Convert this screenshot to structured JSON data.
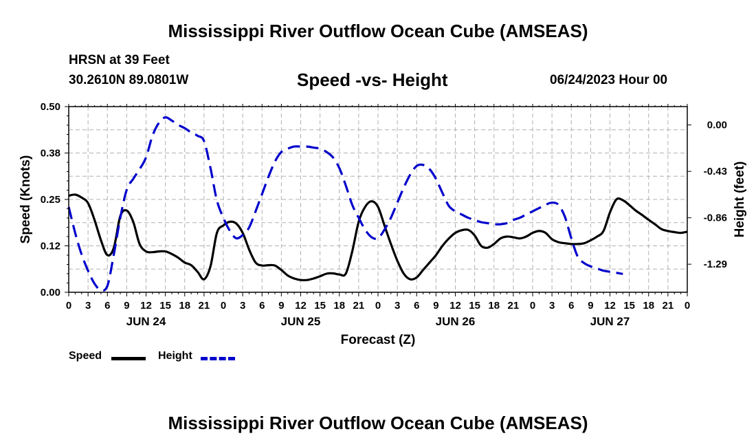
{
  "header": {
    "title": "Mississippi River Outflow Ocean Cube (AMSEAS)",
    "station": "HRSN at 39 Feet",
    "coords": "30.2610N  89.0801W",
    "plot_title": "Speed -vs- Height",
    "datetime": "06/24/2023 Hour 00"
  },
  "footer": {
    "title": "Mississippi River Outflow Ocean Cube (AMSEAS)"
  },
  "legend": {
    "speed_label": "Speed",
    "height_label": "Height"
  },
  "colors": {
    "speed": "#000000",
    "height": "#0000cc",
    "grid": "#b0b0b0"
  },
  "chart_data": {
    "type": "line",
    "xlabel": "Forecast (Z)",
    "ylabel": "Speed (Knots)",
    "y2label": "Height (feet)",
    "x_unit": "hours since 06/24/2023 00Z",
    "xlim": [
      0,
      96
    ],
    "ylim": [
      0,
      0.5
    ],
    "y2lim": [
      -1.55,
      0.17
    ],
    "x_tick_labels": [
      "0",
      "3",
      "6",
      "9",
      "12",
      "15",
      "18",
      "21",
      "0",
      "3",
      "6",
      "9",
      "12",
      "15",
      "18",
      "21",
      "0",
      "3",
      "6",
      "9",
      "12",
      "15",
      "18",
      "21",
      "0",
      "3",
      "6",
      "9",
      "12",
      "15",
      "18",
      "21",
      "0"
    ],
    "y_ticks": [
      {
        "value": 0.0,
        "label": "0.00"
      },
      {
        "value": 0.125,
        "label": "0.12"
      },
      {
        "value": 0.25,
        "label": "0.25"
      },
      {
        "value": 0.375,
        "label": "0.38"
      },
      {
        "value": 0.5,
        "label": "0.50"
      }
    ],
    "y2_ticks": [
      {
        "value": 0.0,
        "label": "0.00"
      },
      {
        "value": -0.43,
        "label": "-0.43"
      },
      {
        "value": -0.86,
        "label": "-0.86"
      },
      {
        "value": -1.29,
        "label": "-1.29"
      }
    ],
    "day_labels": [
      {
        "hour": 12,
        "label": "JUN 24"
      },
      {
        "hour": 36,
        "label": "JUN 25"
      },
      {
        "hour": 60,
        "label": "JUN 26"
      },
      {
        "hour": 84,
        "label": "JUN 27"
      }
    ],
    "series": [
      {
        "name": "Speed",
        "axis": "left",
        "style": "solid",
        "points": [
          [
            0,
            0.26
          ],
          [
            1,
            0.263
          ],
          [
            2,
            0.255
          ],
          [
            3,
            0.24
          ],
          [
            4,
            0.195
          ],
          [
            5,
            0.14
          ],
          [
            6,
            0.1
          ],
          [
            7,
            0.12
          ],
          [
            8,
            0.205
          ],
          [
            9,
            0.22
          ],
          [
            10,
            0.19
          ],
          [
            11,
            0.13
          ],
          [
            12,
            0.11
          ],
          [
            13,
            0.108
          ],
          [
            14,
            0.11
          ],
          [
            15,
            0.11
          ],
          [
            16,
            0.103
          ],
          [
            17,
            0.093
          ],
          [
            18,
            0.08
          ],
          [
            19,
            0.073
          ],
          [
            20,
            0.055
          ],
          [
            21,
            0.035
          ],
          [
            22,
            0.07
          ],
          [
            23,
            0.16
          ],
          [
            24,
            0.18
          ],
          [
            25,
            0.19
          ],
          [
            26,
            0.185
          ],
          [
            27,
            0.16
          ],
          [
            28,
            0.115
          ],
          [
            29,
            0.08
          ],
          [
            30,
            0.072
          ],
          [
            31,
            0.073
          ],
          [
            32,
            0.072
          ],
          [
            33,
            0.06
          ],
          [
            34,
            0.045
          ],
          [
            35,
            0.037
          ],
          [
            36,
            0.033
          ],
          [
            37,
            0.033
          ],
          [
            38,
            0.037
          ],
          [
            39,
            0.043
          ],
          [
            40,
            0.05
          ],
          [
            41,
            0.051
          ],
          [
            42,
            0.048
          ],
          [
            43,
            0.05
          ],
          [
            44,
            0.11
          ],
          [
            45,
            0.19
          ],
          [
            46,
            0.23
          ],
          [
            47,
            0.245
          ],
          [
            48,
            0.23
          ],
          [
            49,
            0.18
          ],
          [
            50,
            0.13
          ],
          [
            51,
            0.085
          ],
          [
            52,
            0.05
          ],
          [
            53,
            0.035
          ],
          [
            54,
            0.04
          ],
          [
            55,
            0.06
          ],
          [
            56,
            0.08
          ],
          [
            57,
            0.1
          ],
          [
            58,
            0.125
          ],
          [
            59,
            0.145
          ],
          [
            60,
            0.16
          ],
          [
            61,
            0.167
          ],
          [
            62,
            0.168
          ],
          [
            63,
            0.153
          ],
          [
            64,
            0.125
          ],
          [
            65,
            0.12
          ],
          [
            66,
            0.13
          ],
          [
            67,
            0.145
          ],
          [
            68,
            0.15
          ],
          [
            69,
            0.148
          ],
          [
            70,
            0.145
          ],
          [
            71,
            0.15
          ],
          [
            72,
            0.16
          ],
          [
            73,
            0.165
          ],
          [
            74,
            0.16
          ],
          [
            75,
            0.143
          ],
          [
            76,
            0.135
          ],
          [
            77,
            0.132
          ],
          [
            78,
            0.13
          ],
          [
            79,
            0.13
          ],
          [
            80,
            0.132
          ],
          [
            81,
            0.14
          ],
          [
            82,
            0.15
          ],
          [
            83,
            0.165
          ],
          [
            84,
            0.215
          ],
          [
            85,
            0.25
          ],
          [
            86,
            0.248
          ],
          [
            87,
            0.235
          ],
          [
            88,
            0.22
          ],
          [
            89,
            0.208
          ],
          [
            90,
            0.195
          ],
          [
            91,
            0.183
          ],
          [
            92,
            0.17
          ],
          [
            93,
            0.165
          ],
          [
            94,
            0.162
          ],
          [
            95,
            0.16
          ],
          [
            96,
            0.163
          ]
        ]
      },
      {
        "name": "Height",
        "axis": "right",
        "style": "dashed",
        "points": [
          [
            0,
            -0.76
          ],
          [
            1,
            -1.0
          ],
          [
            2,
            -1.2
          ],
          [
            3,
            -1.35
          ],
          [
            4,
            -1.47
          ],
          [
            5,
            -1.53
          ],
          [
            6,
            -1.49
          ],
          [
            7,
            -1.2
          ],
          [
            8,
            -0.86
          ],
          [
            9,
            -0.6
          ],
          [
            10,
            -0.5
          ],
          [
            11,
            -0.41
          ],
          [
            12,
            -0.3
          ],
          [
            13,
            -0.1
          ],
          [
            14,
            0.02
          ],
          [
            15,
            0.07
          ],
          [
            16,
            0.04
          ],
          [
            17,
            0.0
          ],
          [
            18,
            -0.03
          ],
          [
            19,
            -0.07
          ],
          [
            20,
            -0.1
          ],
          [
            21,
            -0.15
          ],
          [
            22,
            -0.4
          ],
          [
            23,
            -0.7
          ],
          [
            24,
            -0.86
          ],
          [
            25,
            -0.98
          ],
          [
            26,
            -1.05
          ],
          [
            27,
            -1.02
          ],
          [
            28,
            -0.95
          ],
          [
            29,
            -0.8
          ],
          [
            30,
            -0.64
          ],
          [
            31,
            -0.48
          ],
          [
            32,
            -0.34
          ],
          [
            33,
            -0.25
          ],
          [
            34,
            -0.22
          ],
          [
            35,
            -0.2
          ],
          [
            36,
            -0.2
          ],
          [
            37,
            -0.2
          ],
          [
            38,
            -0.21
          ],
          [
            39,
            -0.22
          ],
          [
            40,
            -0.25
          ],
          [
            41,
            -0.3
          ],
          [
            42,
            -0.4
          ],
          [
            43,
            -0.56
          ],
          [
            44,
            -0.74
          ],
          [
            45,
            -0.86
          ],
          [
            46,
            -0.97
          ],
          [
            47,
            -1.04
          ],
          [
            48,
            -1.05
          ],
          [
            49,
            -0.97
          ],
          [
            50,
            -0.86
          ],
          [
            51,
            -0.72
          ],
          [
            52,
            -0.58
          ],
          [
            53,
            -0.46
          ],
          [
            54,
            -0.38
          ],
          [
            55,
            -0.37
          ],
          [
            56,
            -0.41
          ],
          [
            57,
            -0.5
          ],
          [
            58,
            -0.63
          ],
          [
            59,
            -0.75
          ],
          [
            60,
            -0.8
          ],
          [
            61,
            -0.83
          ],
          [
            62,
            -0.86
          ],
          [
            63,
            -0.88
          ],
          [
            64,
            -0.9
          ],
          [
            65,
            -0.91
          ],
          [
            66,
            -0.92
          ],
          [
            67,
            -0.92
          ],
          [
            68,
            -0.91
          ],
          [
            69,
            -0.88
          ],
          [
            70,
            -0.86
          ],
          [
            71,
            -0.83
          ],
          [
            72,
            -0.8
          ],
          [
            73,
            -0.77
          ],
          [
            74,
            -0.74
          ],
          [
            75,
            -0.72
          ],
          [
            76,
            -0.74
          ],
          [
            77,
            -0.85
          ],
          [
            78,
            -1.05
          ],
          [
            79,
            -1.22
          ],
          [
            80,
            -1.28
          ],
          [
            81,
            -1.31
          ],
          [
            82,
            -1.33
          ],
          [
            83,
            -1.35
          ],
          [
            84,
            -1.36
          ],
          [
            85,
            -1.37
          ],
          [
            86,
            -1.38
          ]
        ]
      }
    ]
  }
}
